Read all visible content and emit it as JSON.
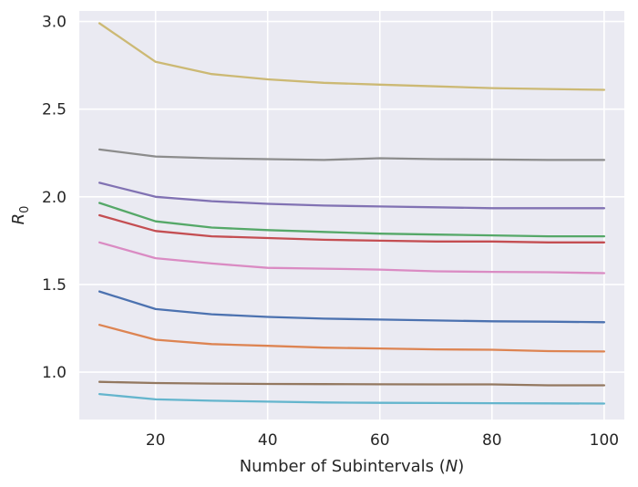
{
  "chart_data": {
    "type": "line",
    "title": "",
    "xlabel": "Number of Subintervals (N)",
    "xlabel_main": "Number of Subintervals (",
    "xlabel_var": "N",
    "xlabel_end": ")",
    "ylabel": "R0",
    "ylabel_main": "R",
    "ylabel_sub": "0",
    "xlim": [
      6.4,
      103.6
    ],
    "ylim": [
      0.73,
      3.06
    ],
    "xticks": [
      20,
      40,
      60,
      80,
      100
    ],
    "xtick_labels": [
      "20",
      "40",
      "60",
      "80",
      "100"
    ],
    "yticks": [
      1.0,
      1.5,
      2.0,
      2.5,
      3.0
    ],
    "ytick_labels": [
      "1.0",
      "1.5",
      "2.0",
      "2.5",
      "3.0"
    ],
    "grid": true,
    "background": "#eaeaf2",
    "x": [
      10,
      20,
      30,
      40,
      50,
      60,
      70,
      80,
      90,
      100
    ],
    "series": [
      {
        "name": "series-yellow",
        "color": "#ccb974",
        "values": [
          2.99,
          2.77,
          2.7,
          2.67,
          2.65,
          2.64,
          2.63,
          2.62,
          2.615,
          2.61
        ]
      },
      {
        "name": "series-gray",
        "color": "#8c8c8c",
        "values": [
          2.27,
          2.23,
          2.22,
          2.215,
          2.21,
          2.22,
          2.215,
          2.213,
          2.21,
          2.21
        ]
      },
      {
        "name": "series-purple",
        "color": "#8172b3",
        "values": [
          2.08,
          2.0,
          1.975,
          1.96,
          1.95,
          1.945,
          1.94,
          1.935,
          1.935,
          1.935
        ]
      },
      {
        "name": "series-green",
        "color": "#55a868",
        "values": [
          1.965,
          1.86,
          1.825,
          1.81,
          1.8,
          1.79,
          1.785,
          1.78,
          1.775,
          1.775
        ]
      },
      {
        "name": "series-red",
        "color": "#c44e52",
        "values": [
          1.895,
          1.805,
          1.775,
          1.765,
          1.755,
          1.75,
          1.745,
          1.745,
          1.74,
          1.74
        ]
      },
      {
        "name": "series-pink",
        "color": "#da8bc3",
        "values": [
          1.74,
          1.65,
          1.62,
          1.595,
          1.59,
          1.585,
          1.575,
          1.572,
          1.57,
          1.565
        ]
      },
      {
        "name": "series-blue",
        "color": "#4c72b0",
        "values": [
          1.46,
          1.36,
          1.33,
          1.315,
          1.305,
          1.3,
          1.295,
          1.29,
          1.288,
          1.285
        ]
      },
      {
        "name": "series-orange",
        "color": "#dd8452",
        "values": [
          1.27,
          1.185,
          1.16,
          1.15,
          1.14,
          1.135,
          1.13,
          1.128,
          1.12,
          1.118
        ]
      },
      {
        "name": "series-brown",
        "color": "#937860",
        "values": [
          0.945,
          0.938,
          0.935,
          0.933,
          0.932,
          0.931,
          0.93,
          0.93,
          0.925,
          0.925
        ]
      },
      {
        "name": "series-cyan",
        "color": "#64b5cd",
        "values": [
          0.875,
          0.845,
          0.837,
          0.832,
          0.827,
          0.825,
          0.824,
          0.823,
          0.822,
          0.821
        ]
      }
    ]
  }
}
